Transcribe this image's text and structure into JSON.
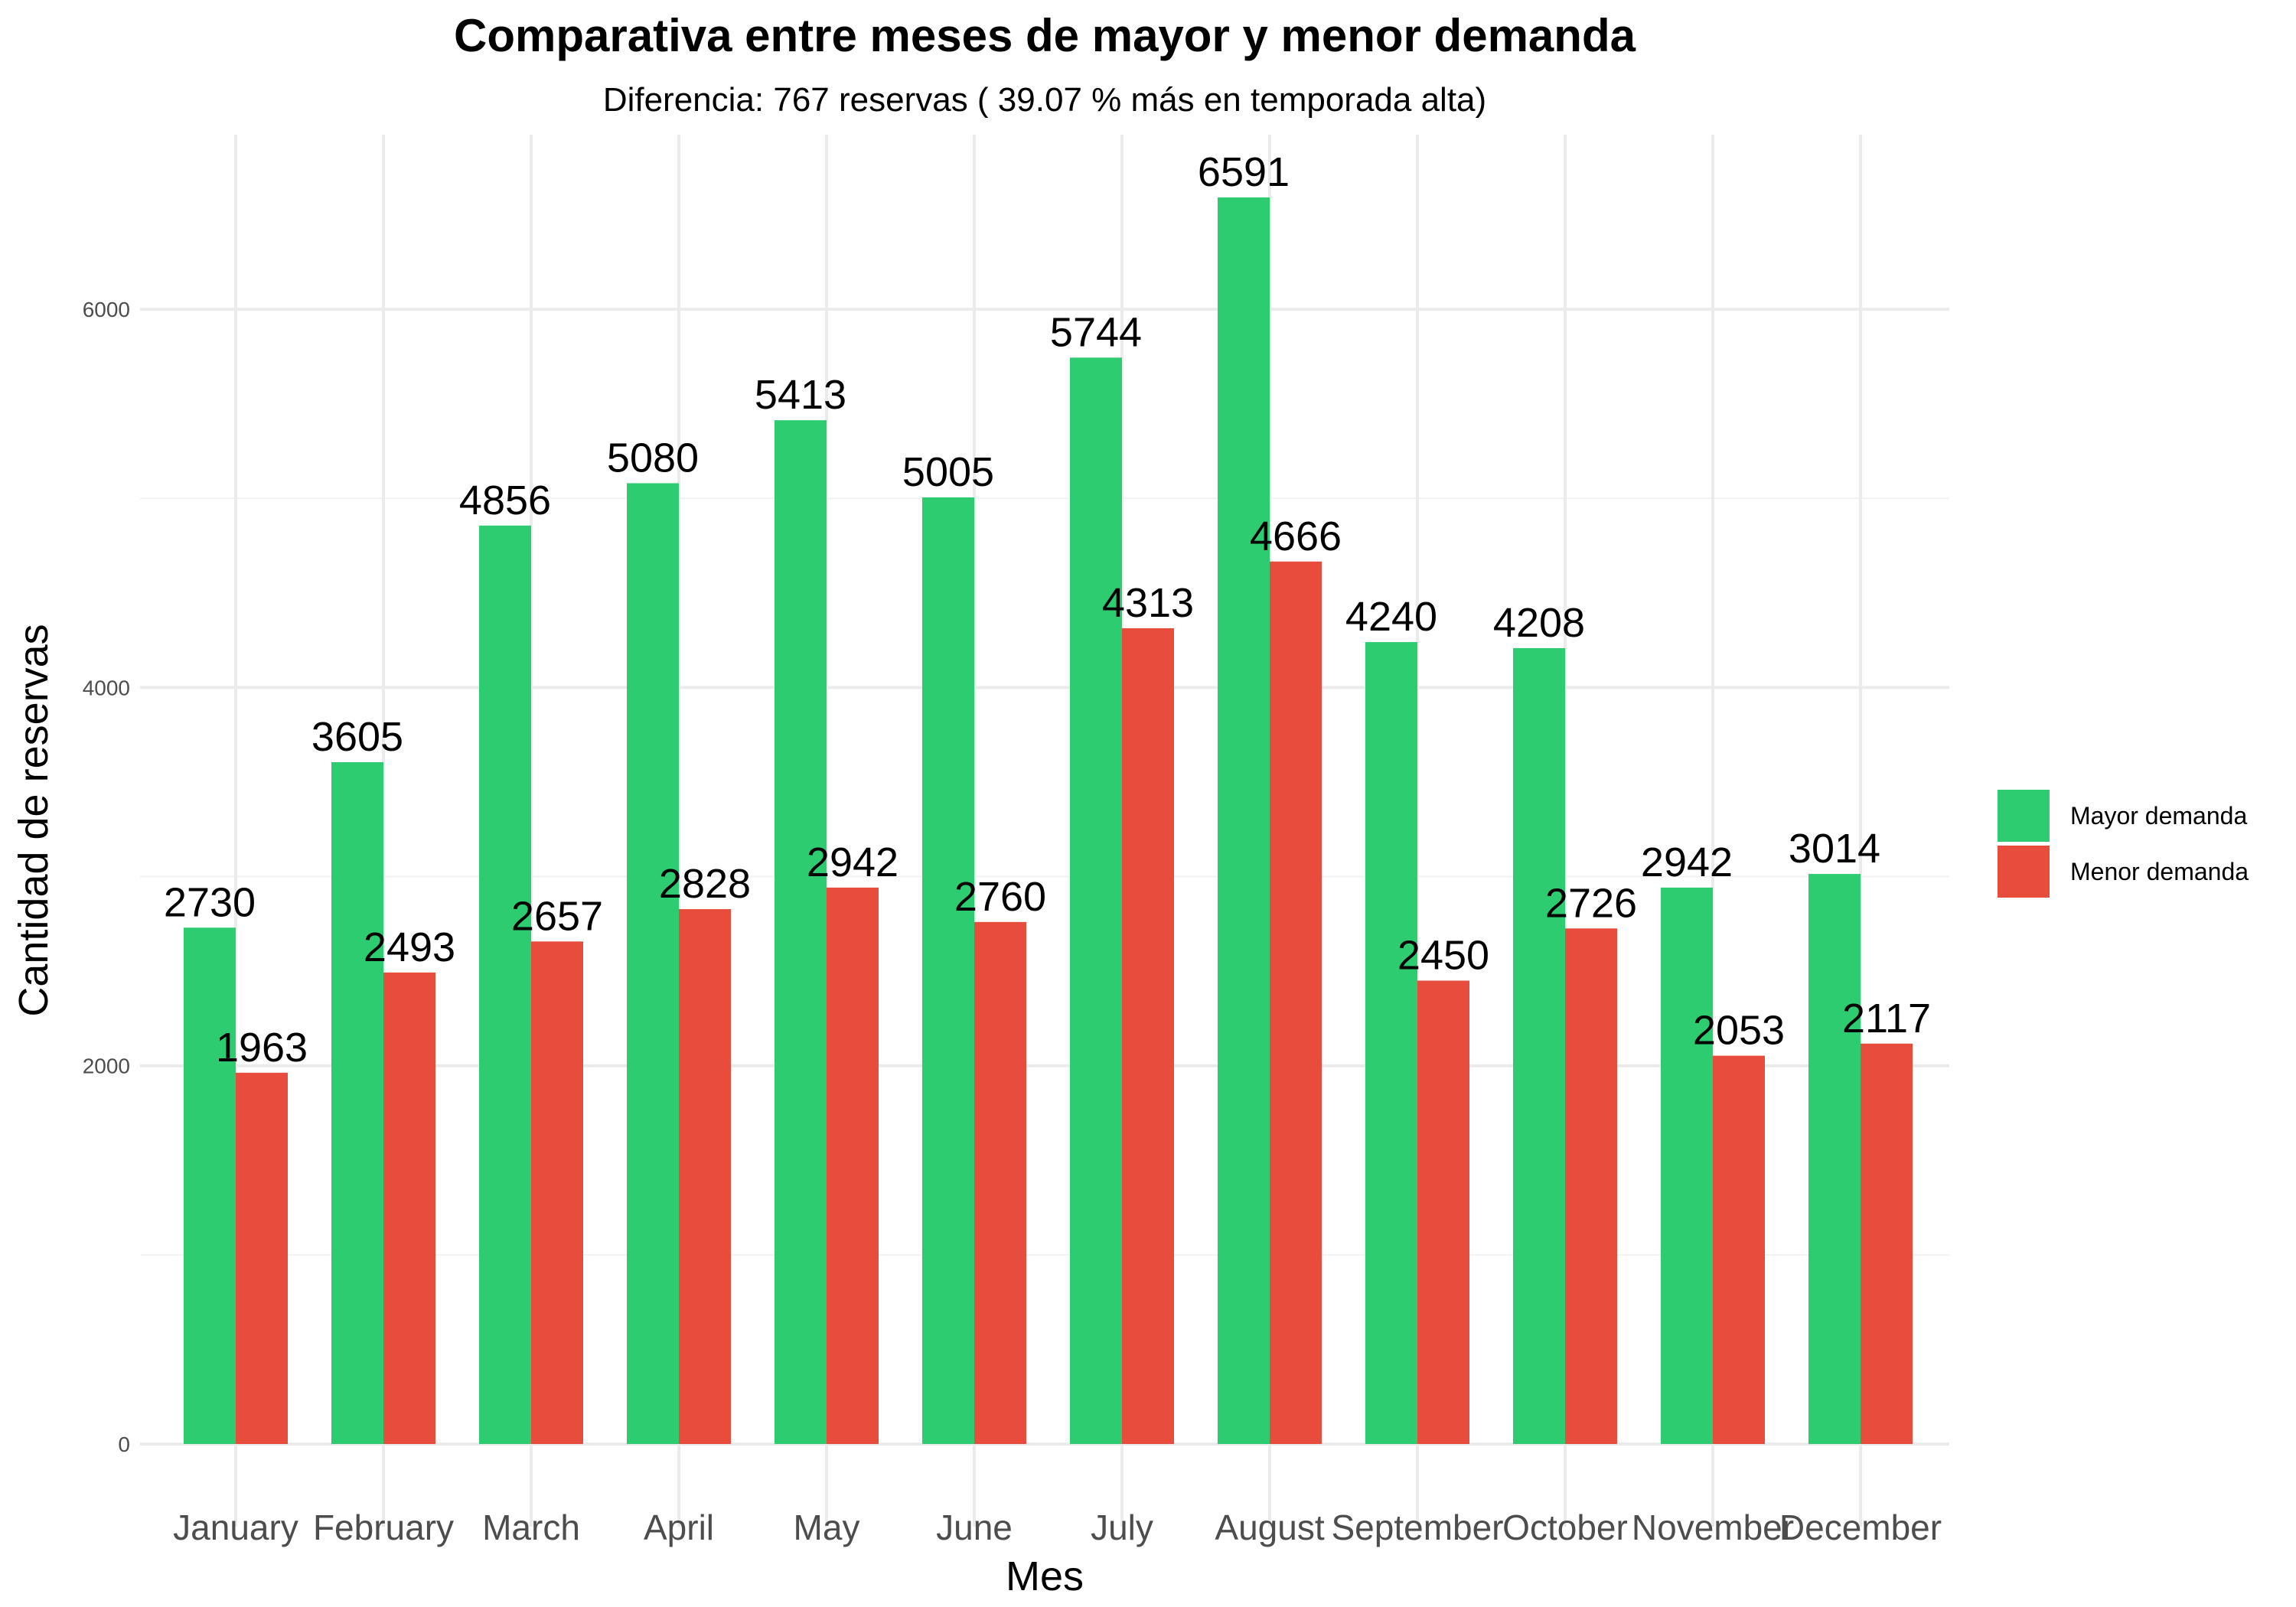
{
  "chart_data": {
    "type": "bar",
    "title": "Comparativa entre meses de mayor y menor demanda",
    "subtitle": "Diferencia: 767 reservas ( 39.07 % más en temporada alta)",
    "xlabel": "Mes",
    "ylabel": "Cantidad de reservas",
    "categories": [
      "January",
      "February",
      "March",
      "April",
      "May",
      "June",
      "July",
      "August",
      "September",
      "October",
      "November",
      "December"
    ],
    "series": [
      {
        "name": "Mayor demanda",
        "color": "#2ECC71",
        "values": [
          2730,
          3605,
          4856,
          5080,
          5413,
          5005,
          5744,
          6591,
          4240,
          4208,
          2942,
          3014
        ]
      },
      {
        "name": "Menor demanda",
        "color": "#E74C3C",
        "values": [
          1963,
          2493,
          2657,
          2828,
          2942,
          2760,
          4313,
          4666,
          2450,
          2726,
          2053,
          2117
        ]
      }
    ],
    "ylim": [
      0,
      6591
    ],
    "y_ticks": [
      0,
      2000,
      4000,
      6000
    ],
    "grid": true,
    "legend_position": "right"
  }
}
